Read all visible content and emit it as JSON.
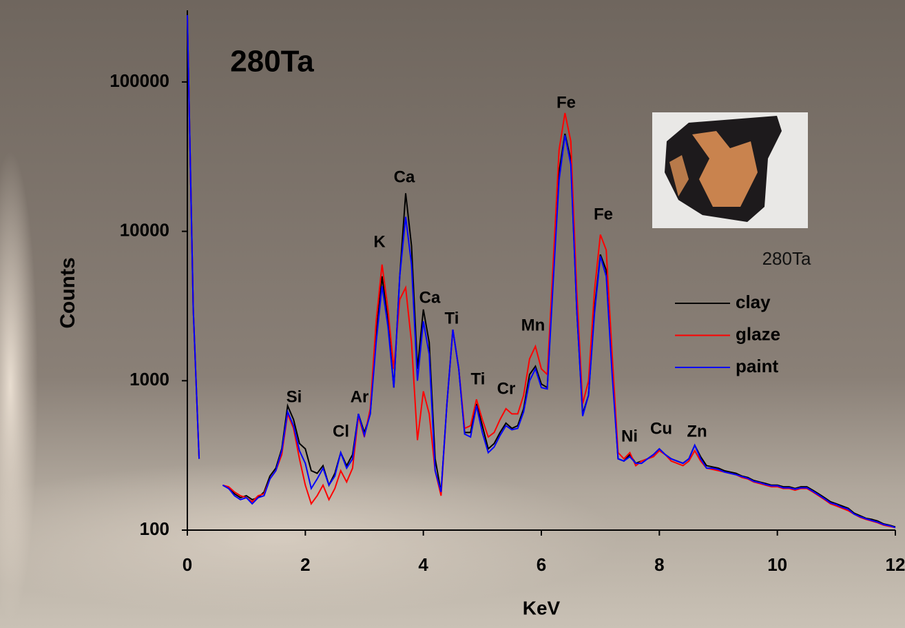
{
  "chart_data": {
    "type": "line",
    "title": "280Ta",
    "image_caption": "280Ta",
    "x_label": "KeV",
    "y_label": "Counts",
    "log_y": true,
    "legend": "right",
    "xlim": [
      0,
      12
    ],
    "xticks": [
      0,
      2,
      4,
      6,
      8,
      10,
      12
    ],
    "ylim": [
      100,
      300000
    ],
    "yticks": [
      100,
      1000,
      10000,
      100000
    ],
    "annotations": [
      "Si",
      "Cl",
      "Ar",
      "K",
      "Ca",
      "Ca",
      "Ti",
      "Ti",
      "Cr",
      "Mn",
      "Fe",
      "Fe",
      "Ni",
      "Cu",
      "Zn"
    ],
    "x": [
      0,
      0.1,
      0.2,
      0.3,
      0.4,
      0.5,
      0.6,
      0.7,
      0.8,
      0.9,
      1.0,
      1.1,
      1.2,
      1.3,
      1.4,
      1.5,
      1.6,
      1.7,
      1.8,
      1.9,
      2.0,
      2.1,
      2.2,
      2.3,
      2.4,
      2.5,
      2.6,
      2.7,
      2.8,
      2.9,
      3.0,
      3.1,
      3.2,
      3.3,
      3.4,
      3.5,
      3.6,
      3.7,
      3.8,
      3.9,
      4.0,
      4.1,
      4.2,
      4.3,
      4.4,
      4.5,
      4.6,
      4.7,
      4.8,
      4.9,
      5.0,
      5.1,
      5.2,
      5.3,
      5.4,
      5.5,
      5.6,
      5.7,
      5.8,
      5.9,
      6.0,
      6.1,
      6.2,
      6.3,
      6.4,
      6.5,
      6.6,
      6.7,
      6.8,
      6.9,
      7.0,
      7.1,
      7.2,
      7.3,
      7.4,
      7.5,
      7.6,
      7.7,
      7.8,
      7.9,
      8.0,
      8.1,
      8.2,
      8.3,
      8.4,
      8.5,
      8.6,
      8.7,
      8.8,
      8.9,
      9.0,
      9.1,
      9.2,
      9.3,
      9.4,
      9.5,
      9.6,
      9.7,
      9.8,
      9.9,
      10.0,
      10.1,
      10.2,
      10.3,
      10.4,
      10.5,
      10.6,
      10.7,
      10.8,
      10.9,
      11.0,
      11.1,
      11.2,
      11.3,
      11.4,
      11.5,
      11.6,
      11.7,
      11.8,
      11.9,
      12.0
    ],
    "series": [
      {
        "name": "clay",
        "color": "#000000",
        "values": [
          280000,
          3000,
          300,
          null,
          null,
          null,
          200,
          190,
          175,
          165,
          170,
          160,
          165,
          180,
          230,
          260,
          350,
          680,
          550,
          380,
          350,
          250,
          240,
          270,
          200,
          240,
          330,
          270,
          320,
          600,
          450,
          600,
          2000,
          5000,
          2500,
          900,
          5000,
          18000,
          8000,
          1200,
          3000,
          1800,
          300,
          180,
          700,
          2200,
          1200,
          450,
          450,
          700,
          500,
          350,
          380,
          450,
          520,
          480,
          500,
          650,
          1100,
          1250,
          950,
          900,
          5000,
          25000,
          45000,
          30000,
          3000,
          600,
          800,
          3000,
          7000,
          5500,
          1200,
          300,
          290,
          320,
          280,
          290,
          300,
          320,
          350,
          320,
          300,
          290,
          280,
          300,
          370,
          310,
          270,
          265,
          260,
          250,
          245,
          240,
          230,
          225,
          215,
          210,
          205,
          200,
          200,
          195,
          195,
          190,
          195,
          195,
          185,
          175,
          165,
          155,
          150,
          145,
          140,
          130,
          125,
          120,
          118,
          115,
          110,
          108,
          105
        ]
      },
      {
        "name": "glaze",
        "color": "#ff0000",
        "values": [
          280000,
          3000,
          300,
          null,
          null,
          null,
          200,
          195,
          180,
          170,
          165,
          155,
          170,
          175,
          220,
          250,
          320,
          600,
          480,
          300,
          200,
          150,
          170,
          200,
          160,
          190,
          250,
          210,
          260,
          580,
          420,
          650,
          2500,
          6000,
          3000,
          1200,
          3500,
          4200,
          1800,
          400,
          850,
          600,
          250,
          170,
          700,
          2200,
          1200,
          480,
          500,
          750,
          550,
          420,
          450,
          550,
          650,
          600,
          600,
          800,
          1400,
          1700,
          1200,
          1100,
          6000,
          35000,
          62000,
          40000,
          4000,
          700,
          1000,
          4000,
          9500,
          7500,
          1500,
          330,
          300,
          330,
          270,
          290,
          300,
          310,
          340,
          320,
          290,
          280,
          270,
          290,
          340,
          290,
          260,
          255,
          250,
          245,
          240,
          235,
          225,
          220,
          210,
          205,
          200,
          195,
          195,
          190,
          190,
          185,
          190,
          190,
          180,
          170,
          160,
          150,
          145,
          140,
          135,
          128,
          122,
          118,
          115,
          112,
          108,
          106,
          104
        ]
      },
      {
        "name": "paint",
        "color": "#0000ff",
        "values": [
          280000,
          3000,
          300,
          null,
          null,
          null,
          200,
          190,
          170,
          160,
          165,
          150,
          165,
          170,
          220,
          250,
          340,
          620,
          500,
          340,
          280,
          190,
          220,
          260,
          200,
          230,
          330,
          260,
          300,
          600,
          430,
          600,
          1800,
          4300,
          2300,
          900,
          5000,
          12500,
          6000,
          1000,
          2500,
          1500,
          250,
          180,
          700,
          2200,
          1200,
          440,
          420,
          680,
          450,
          330,
          360,
          430,
          500,
          470,
          480,
          620,
          1000,
          1200,
          900,
          880,
          4500,
          22000,
          44000,
          28000,
          3000,
          580,
          800,
          2800,
          6800,
          5000,
          1100,
          300,
          290,
          310,
          280,
          280,
          300,
          320,
          350,
          320,
          300,
          290,
          280,
          300,
          370,
          300,
          260,
          260,
          255,
          245,
          240,
          235,
          228,
          222,
          212,
          208,
          202,
          198,
          198,
          192,
          192,
          188,
          192,
          192,
          182,
          172,
          162,
          152,
          148,
          142,
          138,
          128,
          123,
          119,
          116,
          113,
          109,
          107,
          104
        ]
      }
    ]
  }
}
